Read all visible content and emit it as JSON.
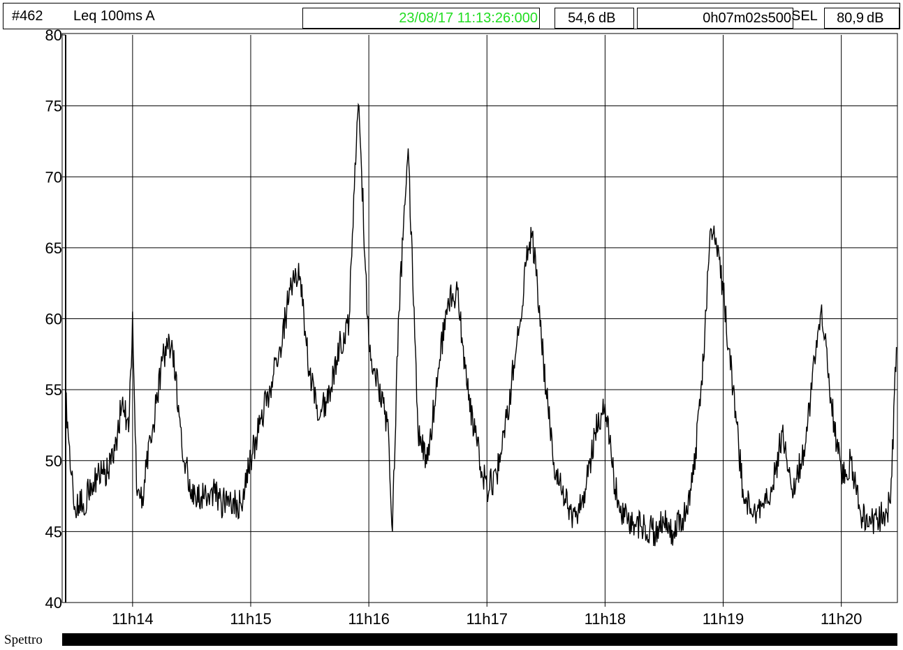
{
  "header": {
    "id": "#462",
    "measure": "Leq 100ms  A",
    "start_time": "23/08/17 11:13:26:000",
    "leq_value": "54,6",
    "leq_unit": "dB",
    "duration": "0h07m02s500",
    "sel_label": "SEL",
    "sel_value": "80,9",
    "sel_unit": "dB"
  },
  "footer": {
    "label": "Spettro"
  },
  "colors": {
    "timestamp": "#22dd22",
    "trace": "#000000",
    "grid": "#000000"
  },
  "chart_data": {
    "type": "line",
    "title": "",
    "xlabel": "",
    "ylabel": "",
    "ylim": [
      40,
      80
    ],
    "xlim": [
      "11:13:26",
      "11:20:28.5"
    ],
    "yticks": [
      40,
      45,
      50,
      55,
      60,
      65,
      70,
      75,
      80
    ],
    "xticks": [
      "11h14",
      "11h15",
      "11h16",
      "11h17",
      "11h18",
      "11h19",
      "11h20"
    ],
    "grid": true,
    "series": [
      {
        "x": [
          "11:13:26",
          "11:13:30",
          "11:13:35",
          "11:13:40",
          "11:13:45",
          "11:13:50",
          "11:13:55",
          "11:13:58",
          "11:14:00",
          "11:14:02",
          "11:14:05",
          "11:14:10",
          "11:14:15",
          "11:14:20",
          "11:14:25",
          "11:14:30",
          "11:14:35",
          "11:14:40",
          "11:14:45",
          "11:14:50",
          "11:14:55",
          "11:15:00",
          "11:15:05",
          "11:15:10",
          "11:15:15",
          "11:15:20",
          "11:15:25",
          "11:15:30",
          "11:15:35",
          "11:15:40",
          "11:15:45",
          "11:15:50",
          "11:15:53",
          "11:15:55",
          "11:16:00",
          "11:16:05",
          "11:16:10",
          "11:16:12",
          "11:16:15",
          "11:16:20",
          "11:16:25",
          "11:16:30",
          "11:16:35",
          "11:16:40",
          "11:16:45",
          "11:16:50",
          "11:16:55",
          "11:17:00",
          "11:17:05",
          "11:17:10",
          "11:17:15",
          "11:17:20",
          "11:17:23",
          "11:17:25",
          "11:17:30",
          "11:17:35",
          "11:17:40",
          "11:17:45",
          "11:17:50",
          "11:17:55",
          "11:18:00",
          "11:18:05",
          "11:18:10",
          "11:18:15",
          "11:18:20",
          "11:18:25",
          "11:18:30",
          "11:18:35",
          "11:18:40",
          "11:18:45",
          "11:18:50",
          "11:18:53",
          "11:18:55",
          "11:19:00",
          "11:19:05",
          "11:19:10",
          "11:19:15",
          "11:19:20",
          "11:19:25",
          "11:19:30",
          "11:19:35",
          "11:19:40",
          "11:19:45",
          "11:19:48",
          "11:19:50",
          "11:19:55",
          "11:20:00",
          "11:20:05",
          "11:20:10",
          "11:20:15",
          "11:20:20",
          "11:20:25",
          "11:20:28"
        ],
        "values": [
          54.5,
          47,
          47,
          48.5,
          49,
          50,
          54.5,
          52,
          60.5,
          48,
          47.5,
          52,
          57,
          58.5,
          51,
          48,
          47.5,
          48,
          47,
          47,
          47,
          50,
          53,
          55,
          58,
          62,
          63,
          56,
          53,
          55,
          58,
          60,
          71,
          75,
          58,
          55,
          52,
          45,
          60,
          72,
          52,
          50,
          56,
          61,
          62,
          55,
          51,
          48,
          49,
          53,
          58,
          64,
          66,
          63,
          55,
          49,
          47,
          46,
          48,
          52,
          54,
          48,
          46,
          45.5,
          45.5,
          45,
          45.5,
          45,
          46,
          49,
          57,
          65,
          66,
          62,
          55,
          48,
          46,
          47,
          48,
          52,
          48,
          50,
          55,
          59,
          61,
          54,
          49,
          50,
          46,
          45.5,
          46,
          47,
          58
        ]
      }
    ]
  }
}
